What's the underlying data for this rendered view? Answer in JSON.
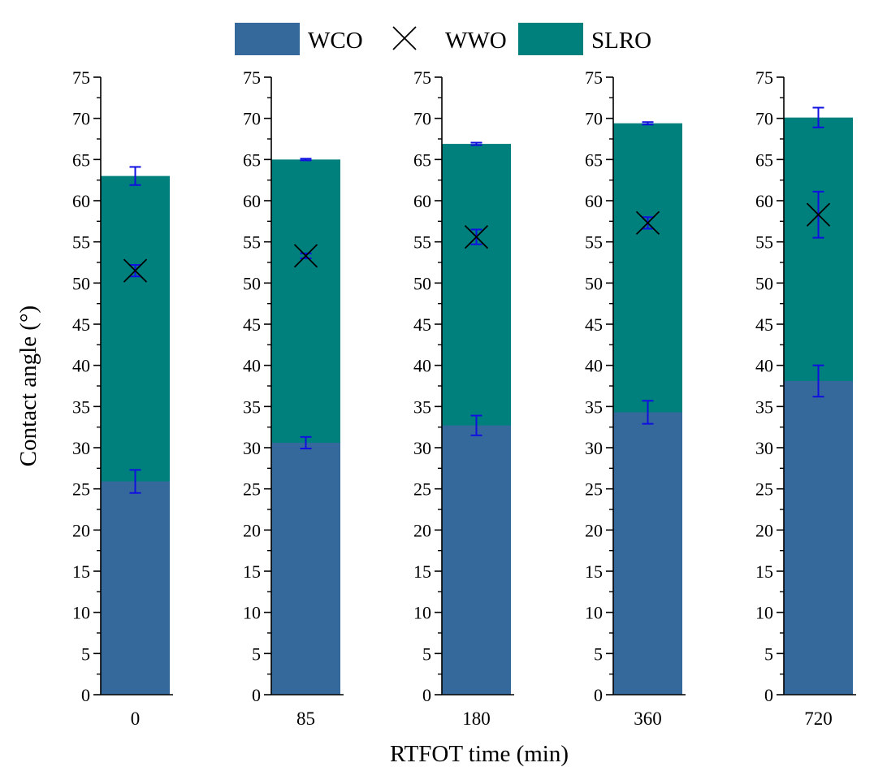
{
  "chart_data": {
    "type": "bar",
    "layout": "faceted-stacked",
    "xlabel": "RTFOT time (min)",
    "ylabel": "Contact angle (°)",
    "ylim": [
      0,
      75
    ],
    "yticks": [
      0,
      5,
      10,
      15,
      20,
      25,
      30,
      35,
      40,
      45,
      50,
      55,
      60,
      65,
      70,
      75
    ],
    "y_minor_step": 2.5,
    "categories": [
      "0",
      "85",
      "180",
      "360",
      "720"
    ],
    "series": [
      {
        "name": "WCO",
        "kind": "bar",
        "color": "#36699B",
        "values": [
          25.9,
          30.6,
          32.7,
          34.3,
          38.1
        ],
        "errors": [
          1.4,
          0.7,
          1.2,
          1.4,
          1.9
        ]
      },
      {
        "name": "WWO",
        "kind": "marker",
        "marker": "x",
        "color": "#000000",
        "values": [
          51.5,
          53.3,
          55.6,
          57.3,
          58.3
        ],
        "errors": [
          0.7,
          0.3,
          0.9,
          0.7,
          2.8
        ]
      },
      {
        "name": "SLRO",
        "kind": "bar",
        "color": "#00807D",
        "values": [
          63.0,
          65.0,
          66.9,
          69.4,
          70.1
        ],
        "errors": [
          1.1,
          0.1,
          0.15,
          0.15,
          1.2
        ]
      }
    ],
    "errorbar_color": "#1010E0",
    "legend": {
      "position": "top-center",
      "entries": [
        "WCO",
        "WWO",
        "SLRO"
      ]
    }
  }
}
